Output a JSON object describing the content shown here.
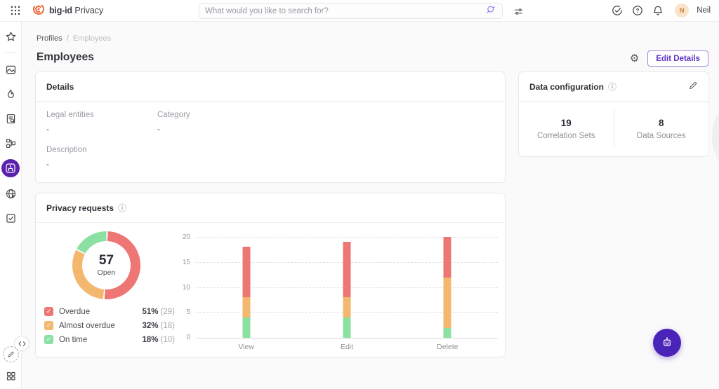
{
  "colors": {
    "accent_purple": "#5d33c4",
    "sidebar_active_purple": "#5b21ad",
    "fab_purple": "#4a23b9",
    "logo_orange": "#ee5a29",
    "overdue_red": "#ee7674",
    "almost_overdue_orange": "#f3b86e",
    "on_time_green": "#8ce0a2",
    "avatar_bg": "#f7e4ca",
    "avatar_text": "#cd8436"
  },
  "icons": {
    "topbar": [
      "apps-grid-icon",
      "bigid-logo-icon",
      "ai-search-icon",
      "filter-sliders-icon",
      "task-check-icon",
      "help-icon",
      "bell-icon"
    ],
    "sidebar": [
      "star-icon",
      "image-icon",
      "flame-icon",
      "document-search-icon",
      "workflow-icon",
      "sitemap-icon",
      "globe-icon",
      "checkbox-icon",
      "pencil-dashed-icon",
      "collapse-icon",
      "grid-small-icon"
    ],
    "page": [
      "gear-icon",
      "info-icon",
      "pencil-icon",
      "robot-icon"
    ]
  },
  "topbar": {
    "product_name": "big-id",
    "module_name": "Privacy",
    "search_placeholder": "What would you like to search for?",
    "user_initial": "N",
    "user_name": "Neil"
  },
  "breadcrumb": {
    "parent": "Profiles",
    "separator": "/",
    "current": "Employees"
  },
  "page": {
    "title": "Employees",
    "edit_details_label": "Edit Details"
  },
  "details_card": {
    "title": "Details",
    "fields": [
      {
        "label": "Legal entities",
        "value": "-"
      },
      {
        "label": "Category",
        "value": "-"
      },
      {
        "label": "Description",
        "value": "-"
      }
    ]
  },
  "data_config_card": {
    "title": "Data configuration",
    "stats": [
      {
        "value": "19",
        "label": "Correlation Sets"
      },
      {
        "value": "8",
        "label": "Data Sources"
      }
    ]
  },
  "privacy_card": {
    "title": "Privacy requests",
    "donut_center_value": "57",
    "donut_center_label": "Open",
    "legend": [
      {
        "name": "Overdue",
        "pct": "51%",
        "count": "(29)"
      },
      {
        "name": "Almost overdue",
        "pct": "32%",
        "count": "(18)"
      },
      {
        "name": "On time",
        "pct": "18%",
        "count": "(10)"
      }
    ]
  },
  "chart_data": [
    {
      "type": "pie",
      "subtype": "donut",
      "title": "Privacy requests by status",
      "center_value": 57,
      "center_label": "Open",
      "segments": [
        {
          "name": "Overdue",
          "value": 29,
          "pct": 51,
          "color": "#ee7674"
        },
        {
          "name": "Almost overdue",
          "value": 18,
          "pct": 32,
          "color": "#f3b86e"
        },
        {
          "name": "On time",
          "value": 10,
          "pct": 18,
          "color": "#8ce0a2"
        }
      ],
      "legend_position": "bottom-left"
    },
    {
      "type": "bar",
      "stacked": true,
      "categories": [
        "View",
        "Edit",
        "Delete"
      ],
      "series": [
        {
          "name": "On time",
          "color": "#8ce0a2",
          "values": [
            4,
            4,
            2
          ]
        },
        {
          "name": "Almost overdue",
          "color": "#f3b86e",
          "values": [
            4,
            4,
            10
          ]
        },
        {
          "name": "Overdue",
          "color": "#ee7674",
          "values": [
            10,
            11,
            8
          ]
        }
      ],
      "ylim": [
        0,
        20
      ],
      "yticks": [
        0,
        5,
        10,
        15,
        20
      ],
      "grid": "dashed-horizontal",
      "legend_position": "none"
    }
  ]
}
